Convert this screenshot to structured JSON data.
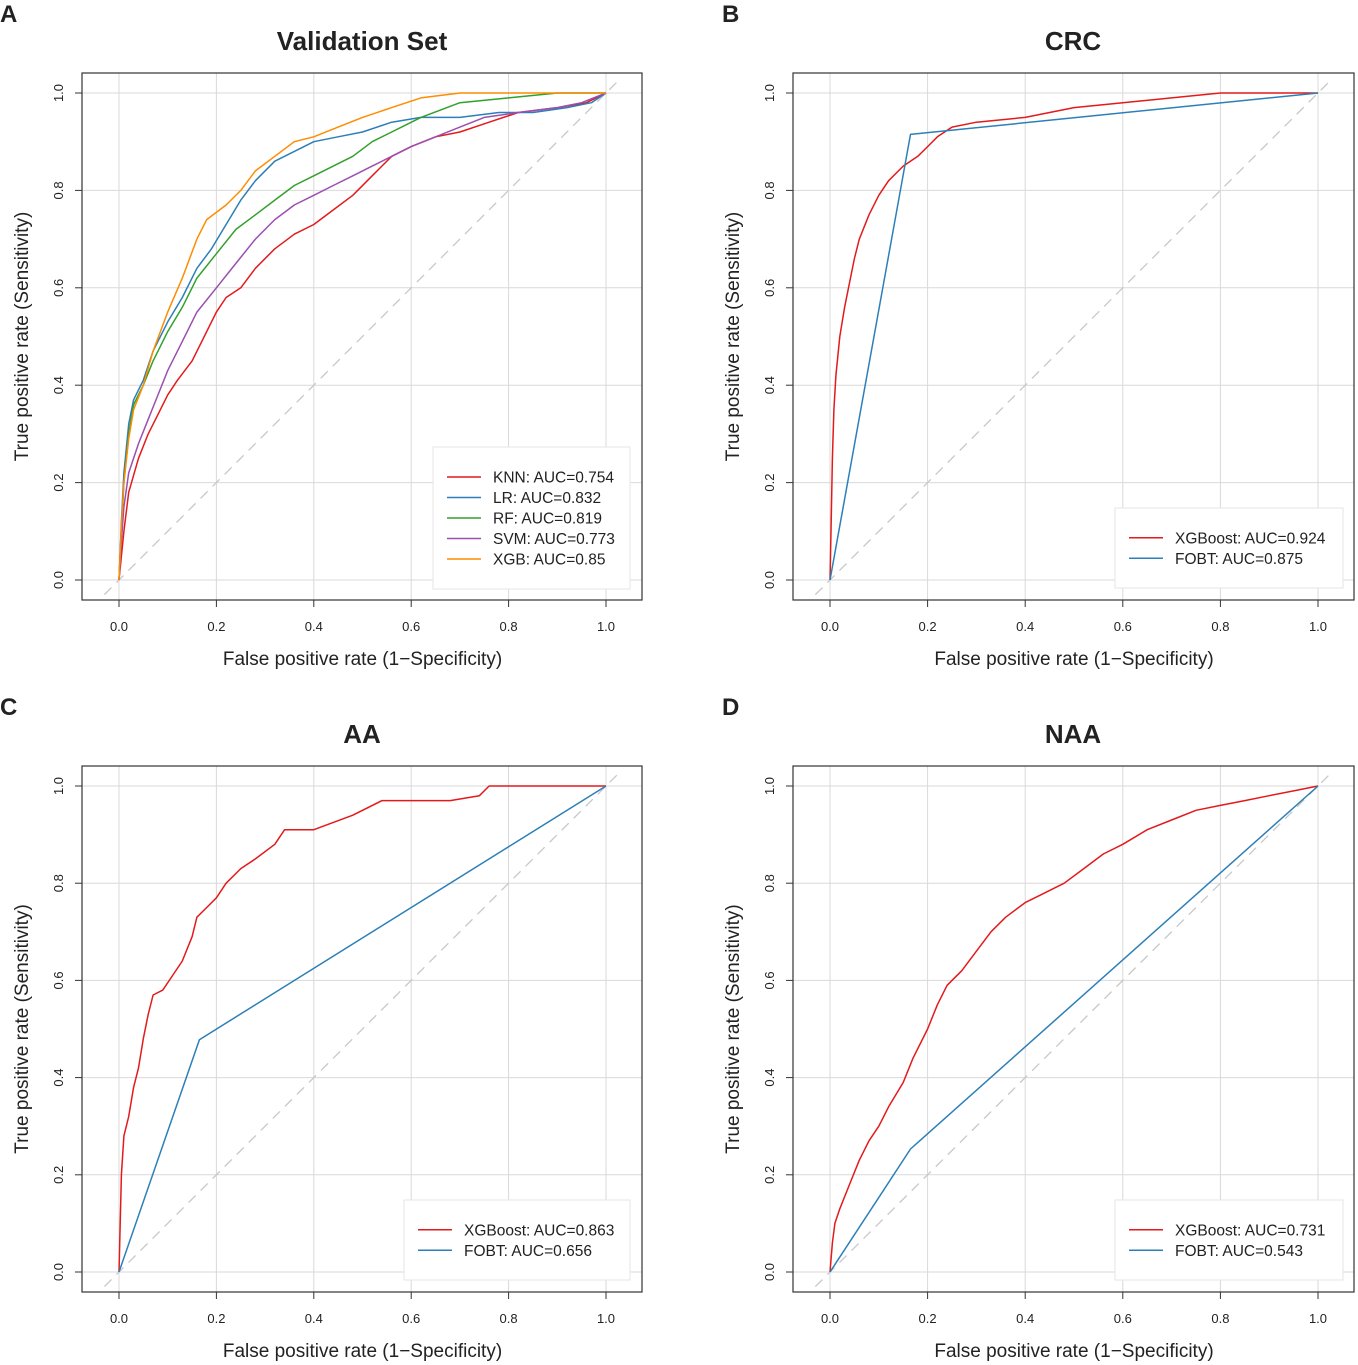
{
  "figure": {
    "xlabel": "False positive rate (1−Specificity)",
    "ylabel": "True positive rate (Sensitivity)",
    "ticks": [
      "0.0",
      "0.2",
      "0.4",
      "0.6",
      "0.8",
      "1.0"
    ]
  },
  "colors": {
    "red": "#e31a1c",
    "blue": "#2c7fb8",
    "green": "#33a02c",
    "purple": "#9b4fb0",
    "orange": "#ff8c00",
    "grid": "#d9d9d9",
    "diagonal": "#c8c8c8",
    "frame": "#333333"
  },
  "chart_data": [
    {
      "panel": "A",
      "type": "line",
      "title": "Validation Set",
      "xlabel": "False positive rate (1−Specificity)",
      "ylabel": "True positive rate (Sensitivity)",
      "xlim": [
        0,
        1
      ],
      "ylim": [
        0,
        1
      ],
      "grid": true,
      "legend_position": "bottom-right",
      "series": [
        {
          "name": "KNN",
          "legend": "KNN: AUC=0.754",
          "color": "red",
          "points": [
            [
              0,
              0
            ],
            [
              0.01,
              0.1
            ],
            [
              0.02,
              0.18
            ],
            [
              0.04,
              0.25
            ],
            [
              0.06,
              0.3
            ],
            [
              0.08,
              0.34
            ],
            [
              0.1,
              0.38
            ],
            [
              0.12,
              0.41
            ],
            [
              0.15,
              0.45
            ],
            [
              0.18,
              0.51
            ],
            [
              0.2,
              0.55
            ],
            [
              0.22,
              0.58
            ],
            [
              0.25,
              0.6
            ],
            [
              0.28,
              0.64
            ],
            [
              0.32,
              0.68
            ],
            [
              0.36,
              0.71
            ],
            [
              0.4,
              0.73
            ],
            [
              0.44,
              0.76
            ],
            [
              0.48,
              0.79
            ],
            [
              0.52,
              0.83
            ],
            [
              0.56,
              0.87
            ],
            [
              0.6,
              0.89
            ],
            [
              0.65,
              0.91
            ],
            [
              0.7,
              0.92
            ],
            [
              0.76,
              0.94
            ],
            [
              0.82,
              0.96
            ],
            [
              0.9,
              0.97
            ],
            [
              0.96,
              0.98
            ],
            [
              1,
              1
            ]
          ]
        },
        {
          "name": "LR",
          "legend": "LR: AUC=0.832",
          "color": "blue",
          "points": [
            [
              0,
              0
            ],
            [
              0.005,
              0.12
            ],
            [
              0.01,
              0.22
            ],
            [
              0.02,
              0.32
            ],
            [
              0.03,
              0.37
            ],
            [
              0.05,
              0.41
            ],
            [
              0.07,
              0.47
            ],
            [
              0.1,
              0.53
            ],
            [
              0.13,
              0.58
            ],
            [
              0.16,
              0.64
            ],
            [
              0.19,
              0.68
            ],
            [
              0.22,
              0.73
            ],
            [
              0.25,
              0.78
            ],
            [
              0.28,
              0.82
            ],
            [
              0.32,
              0.86
            ],
            [
              0.36,
              0.88
            ],
            [
              0.4,
              0.9
            ],
            [
              0.45,
              0.91
            ],
            [
              0.5,
              0.92
            ],
            [
              0.56,
              0.94
            ],
            [
              0.62,
              0.95
            ],
            [
              0.7,
              0.95
            ],
            [
              0.78,
              0.96
            ],
            [
              0.85,
              0.96
            ],
            [
              0.92,
              0.97
            ],
            [
              0.97,
              0.98
            ],
            [
              1,
              1
            ]
          ]
        },
        {
          "name": "RF",
          "legend": "RF: AUC=0.819",
          "color": "green",
          "points": [
            [
              0,
              0
            ],
            [
              0.005,
              0.1
            ],
            [
              0.01,
              0.2
            ],
            [
              0.02,
              0.3
            ],
            [
              0.03,
              0.36
            ],
            [
              0.05,
              0.4
            ],
            [
              0.07,
              0.45
            ],
            [
              0.1,
              0.51
            ],
            [
              0.13,
              0.56
            ],
            [
              0.16,
              0.62
            ],
            [
              0.2,
              0.67
            ],
            [
              0.24,
              0.72
            ],
            [
              0.28,
              0.75
            ],
            [
              0.32,
              0.78
            ],
            [
              0.36,
              0.81
            ],
            [
              0.4,
              0.83
            ],
            [
              0.44,
              0.85
            ],
            [
              0.48,
              0.87
            ],
            [
              0.52,
              0.9
            ],
            [
              0.56,
              0.92
            ],
            [
              0.62,
              0.95
            ],
            [
              0.7,
              0.98
            ],
            [
              0.8,
              0.99
            ],
            [
              0.9,
              1.0
            ],
            [
              1,
              1
            ]
          ]
        },
        {
          "name": "SVM",
          "legend": "SVM: AUC=0.773",
          "color": "purple",
          "points": [
            [
              0,
              0
            ],
            [
              0.005,
              0.08
            ],
            [
              0.01,
              0.15
            ],
            [
              0.02,
              0.22
            ],
            [
              0.04,
              0.28
            ],
            [
              0.06,
              0.33
            ],
            [
              0.08,
              0.38
            ],
            [
              0.1,
              0.43
            ],
            [
              0.13,
              0.49
            ],
            [
              0.16,
              0.55
            ],
            [
              0.2,
              0.6
            ],
            [
              0.24,
              0.65
            ],
            [
              0.28,
              0.7
            ],
            [
              0.32,
              0.74
            ],
            [
              0.36,
              0.77
            ],
            [
              0.4,
              0.79
            ],
            [
              0.44,
              0.81
            ],
            [
              0.48,
              0.83
            ],
            [
              0.52,
              0.85
            ],
            [
              0.56,
              0.87
            ],
            [
              0.6,
              0.89
            ],
            [
              0.65,
              0.91
            ],
            [
              0.7,
              0.93
            ],
            [
              0.75,
              0.95
            ],
            [
              0.82,
              0.96
            ],
            [
              0.9,
              0.97
            ],
            [
              0.95,
              0.98
            ],
            [
              1,
              1
            ]
          ]
        },
        {
          "name": "XGB",
          "legend": "XGB: AUC=0.85",
          "color": "orange",
          "points": [
            [
              0,
              0
            ],
            [
              0.005,
              0.11
            ],
            [
              0.01,
              0.2
            ],
            [
              0.02,
              0.29
            ],
            [
              0.03,
              0.35
            ],
            [
              0.05,
              0.4
            ],
            [
              0.07,
              0.47
            ],
            [
              0.1,
              0.55
            ],
            [
              0.13,
              0.62
            ],
            [
              0.16,
              0.7
            ],
            [
              0.18,
              0.74
            ],
            [
              0.22,
              0.77
            ],
            [
              0.25,
              0.8
            ],
            [
              0.28,
              0.84
            ],
            [
              0.32,
              0.87
            ],
            [
              0.36,
              0.9
            ],
            [
              0.4,
              0.91
            ],
            [
              0.45,
              0.93
            ],
            [
              0.5,
              0.95
            ],
            [
              0.56,
              0.97
            ],
            [
              0.62,
              0.99
            ],
            [
              0.7,
              1.0
            ],
            [
              0.8,
              1.0
            ],
            [
              0.9,
              1.0
            ],
            [
              1,
              1
            ]
          ]
        }
      ]
    },
    {
      "panel": "B",
      "type": "line",
      "title": "CRC",
      "xlabel": "False positive rate (1−Specificity)",
      "ylabel": "True positive rate (Sensitivity)",
      "xlim": [
        0,
        1
      ],
      "ylim": [
        0,
        1
      ],
      "grid": true,
      "legend_position": "bottom-right",
      "series": [
        {
          "name": "XGBoost",
          "legend": "XGBoost: AUC=0.924",
          "color": "red",
          "points": [
            [
              0,
              0
            ],
            [
              0.002,
              0.1
            ],
            [
              0.005,
              0.25
            ],
            [
              0.008,
              0.35
            ],
            [
              0.012,
              0.42
            ],
            [
              0.02,
              0.5
            ],
            [
              0.03,
              0.56
            ],
            [
              0.04,
              0.61
            ],
            [
              0.05,
              0.66
            ],
            [
              0.06,
              0.7
            ],
            [
              0.08,
              0.75
            ],
            [
              0.1,
              0.79
            ],
            [
              0.12,
              0.82
            ],
            [
              0.15,
              0.85
            ],
            [
              0.18,
              0.87
            ],
            [
              0.2,
              0.89
            ],
            [
              0.22,
              0.91
            ],
            [
              0.25,
              0.93
            ],
            [
              0.3,
              0.94
            ],
            [
              0.4,
              0.95
            ],
            [
              0.5,
              0.97
            ],
            [
              0.6,
              0.98
            ],
            [
              0.7,
              0.99
            ],
            [
              0.8,
              1.0
            ],
            [
              1,
              1
            ]
          ]
        },
        {
          "name": "FOBT",
          "legend": "FOBT: AUC=0.875",
          "color": "blue",
          "points": [
            [
              0,
              0
            ],
            [
              0.165,
              0.915
            ],
            [
              1,
              1
            ]
          ]
        }
      ]
    },
    {
      "panel": "C",
      "type": "line",
      "title": "AA",
      "xlabel": "False positive rate (1−Specificity)",
      "ylabel": "True positive rate (Sensitivity)",
      "xlim": [
        0,
        1
      ],
      "ylim": [
        0,
        1
      ],
      "grid": true,
      "legend_position": "bottom-right",
      "series": [
        {
          "name": "XGBoost",
          "legend": "XGBoost: AUC=0.863",
          "color": "red",
          "points": [
            [
              0,
              0
            ],
            [
              0.005,
              0.2
            ],
            [
              0.01,
              0.28
            ],
            [
              0.02,
              0.32
            ],
            [
              0.03,
              0.38
            ],
            [
              0.04,
              0.42
            ],
            [
              0.05,
              0.48
            ],
            [
              0.06,
              0.53
            ],
            [
              0.07,
              0.57
            ],
            [
              0.09,
              0.58
            ],
            [
              0.11,
              0.61
            ],
            [
              0.13,
              0.64
            ],
            [
              0.15,
              0.69
            ],
            [
              0.16,
              0.73
            ],
            [
              0.18,
              0.75
            ],
            [
              0.2,
              0.77
            ],
            [
              0.22,
              0.8
            ],
            [
              0.25,
              0.83
            ],
            [
              0.28,
              0.85
            ],
            [
              0.32,
              0.88
            ],
            [
              0.34,
              0.91
            ],
            [
              0.4,
              0.91
            ],
            [
              0.48,
              0.94
            ],
            [
              0.54,
              0.97
            ],
            [
              0.6,
              0.97
            ],
            [
              0.68,
              0.97
            ],
            [
              0.74,
              0.98
            ],
            [
              0.76,
              1.0
            ],
            [
              0.85,
              1.0
            ],
            [
              1,
              1
            ]
          ]
        },
        {
          "name": "FOBT",
          "legend": "FOBT: AUC=0.656",
          "color": "blue",
          "points": [
            [
              0,
              0
            ],
            [
              0.165,
              0.478
            ],
            [
              1,
              1
            ]
          ]
        }
      ]
    },
    {
      "panel": "D",
      "type": "line",
      "title": "NAA",
      "xlabel": "False positive rate (1−Specificity)",
      "ylabel": "True positive rate (Sensitivity)",
      "xlim": [
        0,
        1
      ],
      "ylim": [
        0,
        1
      ],
      "grid": true,
      "legend_position": "bottom-right",
      "series": [
        {
          "name": "XGBoost",
          "legend": "XGBoost: AUC=0.731",
          "color": "red",
          "points": [
            [
              0,
              0
            ],
            [
              0.005,
              0.06
            ],
            [
              0.01,
              0.1
            ],
            [
              0.02,
              0.13
            ],
            [
              0.04,
              0.18
            ],
            [
              0.06,
              0.23
            ],
            [
              0.08,
              0.27
            ],
            [
              0.1,
              0.3
            ],
            [
              0.12,
              0.34
            ],
            [
              0.15,
              0.39
            ],
            [
              0.17,
              0.44
            ],
            [
              0.2,
              0.5
            ],
            [
              0.22,
              0.55
            ],
            [
              0.24,
              0.59
            ],
            [
              0.27,
              0.62
            ],
            [
              0.3,
              0.66
            ],
            [
              0.33,
              0.7
            ],
            [
              0.36,
              0.73
            ],
            [
              0.4,
              0.76
            ],
            [
              0.44,
              0.78
            ],
            [
              0.48,
              0.8
            ],
            [
              0.52,
              0.83
            ],
            [
              0.56,
              0.86
            ],
            [
              0.6,
              0.88
            ],
            [
              0.65,
              0.91
            ],
            [
              0.7,
              0.93
            ],
            [
              0.75,
              0.95
            ],
            [
              0.8,
              0.96
            ],
            [
              0.85,
              0.97
            ],
            [
              0.9,
              0.98
            ],
            [
              0.95,
              0.99
            ],
            [
              1,
              1
            ]
          ]
        },
        {
          "name": "FOBT",
          "legend": "FOBT: AUC=0.543",
          "color": "blue",
          "points": [
            [
              0,
              0
            ],
            [
              0.165,
              0.253
            ],
            [
              1,
              1
            ]
          ]
        }
      ]
    }
  ]
}
